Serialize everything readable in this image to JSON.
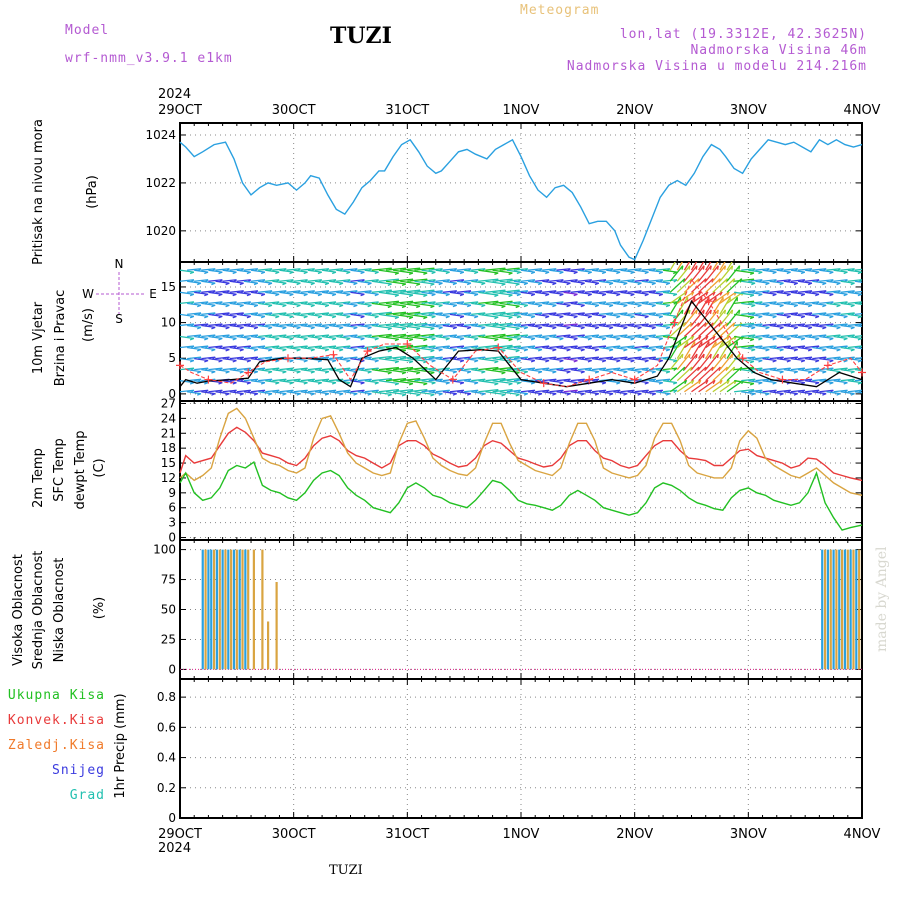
{
  "header": {
    "model_label": "Model",
    "model_name": "wrf-nmm_v3.9.1  e1km",
    "station": "TUZI",
    "title": "Meteogram",
    "lonlat": "lon,lat (19.3312E, 42.3625N)",
    "elevation": "Nadmorska Visina 46m",
    "model_elevation": "Nadmorska Visina u modelu 214.216m",
    "footer_station": "TUZI",
    "credit": "made by Angel"
  },
  "time_axis": {
    "year": "2024",
    "labels": [
      "29OCT",
      "30OCT",
      "31OCT",
      "1NOV",
      "2NOV",
      "3NOV",
      "4NOV"
    ]
  },
  "colors": {
    "pressure": "#2aa0e0",
    "temp2m": "#e83a3a",
    "sfc": "#d9a441",
    "dewpt": "#22c022",
    "high_cloud": "#2aa0e0",
    "mid_cloud": "#d9a441",
    "low_cloud": "#e0208a",
    "header_purple": "#b45ad2",
    "header_gold": "#e8c27a"
  },
  "chart_data": [
    {
      "type": "line",
      "panel": "pressure",
      "ylabel_lines": [
        "Pritisak na nivou mora",
        "(hPa)"
      ],
      "yticks": [
        1020,
        1022,
        1024
      ],
      "ylim": [
        1018.7,
        1024.5
      ],
      "series": [
        {
          "x": [
            0,
            0.1,
            0.25,
            0.4,
            0.6,
            0.8,
            0.95,
            1.1,
            1.25,
            1.4,
            1.55,
            1.7,
            1.9,
            2.05,
            2.2,
            2.3,
            2.45,
            2.6,
            2.75,
            2.9,
            3.05,
            3.2,
            3.35,
            3.5,
            3.6,
            3.75,
            3.9,
            4.05,
            4.2,
            4.35,
            4.5,
            4.6,
            4.75,
            4.9,
            5.05,
            5.2,
            5.4,
            5.55,
            5.7,
            5.85,
            6.0,
            6.15,
            6.3,
            6.45,
            6.6,
            6.75,
            6.9,
            7.05,
            7.2,
            7.35,
            7.5,
            7.65,
            7.75,
            7.9,
            8.0,
            8.15,
            8.3,
            8.45,
            8.6,
            8.75,
            8.9,
            9.05,
            9.2,
            9.35,
            9.5,
            9.6,
            9.75,
            9.9,
            10.05,
            10.2,
            10.35,
            10.5,
            10.65,
            10.8,
            10.95,
            11.1,
            11.25,
            11.4,
            11.55,
            11.7,
            11.85,
            12.0
          ],
          "values": [
            1023.7,
            1023.5,
            1023.1,
            1023.3,
            1023.6,
            1023.7,
            1023.0,
            1022.0,
            1021.5,
            1021.8,
            1022.0,
            1021.9,
            1022.0,
            1021.7,
            1022.0,
            1022.3,
            1022.2,
            1021.5,
            1020.9,
            1020.7,
            1021.2,
            1021.8,
            1022.1,
            1022.5,
            1022.5,
            1023.1,
            1023.6,
            1023.8,
            1023.3,
            1022.7,
            1022.4,
            1022.5,
            1022.9,
            1023.3,
            1023.4,
            1023.2,
            1023.0,
            1023.4,
            1023.6,
            1023.8,
            1023.1,
            1022.3,
            1021.7,
            1021.4,
            1021.8,
            1021.9,
            1021.6,
            1021.0,
            1020.3,
            1020.4,
            1020.4,
            1020.0,
            1019.4,
            1018.9,
            1018.8,
            1019.6,
            1020.5,
            1021.4,
            1021.9,
            1022.1,
            1021.9,
            1022.4,
            1023.1,
            1023.6,
            1023.4,
            1023.1,
            1022.6,
            1022.4,
            1023.0,
            1023.4,
            1023.8,
            1023.7,
            1023.6,
            1023.7,
            1023.5,
            1023.3,
            1023.8,
            1023.6,
            1023.8,
            1023.6,
            1023.5,
            1023.6
          ]
        }
      ]
    },
    {
      "type": "quiver",
      "panel": "wind",
      "ylabel_lines": [
        "10m Vjetar",
        "Brzina i Pravac",
        "(m/s)"
      ],
      "compass": {
        "n": "N",
        "s": "S",
        "w": "W",
        "e": "E"
      },
      "yticks": [
        0,
        5,
        10,
        15
      ],
      "ylim": [
        -1,
        18.5
      ],
      "speed": {
        "x": [
          0,
          0.1,
          0.3,
          0.5,
          0.9,
          1.2,
          1.4,
          1.8,
          2.2,
          2.6,
          2.8,
          3.0,
          3.2,
          3.5,
          3.8,
          4.1,
          4.5,
          4.9,
          5.3,
          5.6,
          6.0,
          6.4,
          6.8,
          7.2,
          7.6,
          8.0,
          8.4,
          8.6,
          8.8,
          9.0,
          9.2,
          9.5,
          9.8,
          10.1,
          10.4,
          10.8,
          11.2,
          11.6,
          12.0
        ],
        "values": [
          1,
          2,
          1.5,
          1.8,
          2,
          2.2,
          4.5,
          5,
          5,
          4.8,
          2,
          1,
          5,
          6,
          6.5,
          5,
          2,
          6,
          6.2,
          6,
          2,
          1.5,
          1,
          1.5,
          2,
          1.5,
          2.5,
          5,
          9,
          13,
          11,
          8,
          5,
          3,
          2,
          1.5,
          1,
          3,
          2
        ]
      },
      "gust": {
        "x": [
          0,
          0.2,
          0.5,
          0.9,
          1.2,
          1.5,
          1.9,
          2.3,
          2.7,
          3.0,
          3.3,
          3.6,
          4.0,
          4.4,
          4.8,
          5.2,
          5.6,
          6.0,
          6.4,
          6.8,
          7.2,
          7.6,
          8.0,
          8.4,
          8.7,
          9.0,
          9.3,
          9.6,
          9.9,
          10.2,
          10.6,
          11.0,
          11.4,
          11.8,
          12.0
        ],
        "values": [
          4,
          3,
          2,
          1.5,
          3,
          4.5,
          5,
          5,
          5.5,
          2,
          6,
          7,
          7,
          4,
          2,
          6,
          6.5,
          3,
          1.5,
          1,
          2,
          3,
          2,
          4,
          10,
          16,
          13,
          9,
          5,
          3,
          2,
          2,
          4,
          5,
          3
        ]
      }
    },
    {
      "type": "line",
      "panel": "temperature",
      "ylabel_lines": [
        "2m Temp",
        "SFC Temp",
        "dewpt Temp",
        "(C)"
      ],
      "yticks": [
        0,
        3,
        6,
        9,
        12,
        15,
        18,
        21,
        24,
        27
      ],
      "ylim": [
        -0.5,
        27.5
      ],
      "x": [
        0,
        0.1,
        0.25,
        0.4,
        0.55,
        0.7,
        0.85,
        1.0,
        1.15,
        1.3,
        1.45,
        1.6,
        1.75,
        1.9,
        2.05,
        2.2,
        2.35,
        2.5,
        2.65,
        2.8,
        2.95,
        3.1,
        3.25,
        3.4,
        3.55,
        3.7,
        3.85,
        4.0,
        4.15,
        4.3,
        4.45,
        4.6,
        4.75,
        4.9,
        5.05,
        5.2,
        5.35,
        5.5,
        5.65,
        5.8,
        5.95,
        6.1,
        6.25,
        6.4,
        6.55,
        6.7,
        6.85,
        7.0,
        7.15,
        7.3,
        7.45,
        7.6,
        7.75,
        7.9,
        8.05,
        8.2,
        8.35,
        8.5,
        8.65,
        8.8,
        8.95,
        9.1,
        9.25,
        9.4,
        9.55,
        9.7,
        9.85,
        10.0,
        10.15,
        10.3,
        10.45,
        10.6,
        10.75,
        10.9,
        11.05,
        11.2,
        11.35,
        11.5,
        11.65,
        11.8,
        12.0
      ],
      "series": [
        {
          "name": "2m Temp",
          "values": [
            13,
            16.5,
            15,
            15.5,
            16,
            18.5,
            21,
            22.2,
            21.2,
            19.5,
            17,
            16.5,
            16,
            15,
            14.5,
            16,
            18.5,
            20,
            20.5,
            19.5,
            17.5,
            16.5,
            16,
            15,
            14,
            15,
            18.5,
            19.5,
            19.5,
            18.5,
            16.8,
            16,
            15,
            14.2,
            14.5,
            16,
            18.5,
            19.5,
            19,
            17.5,
            16,
            15.5,
            14.8,
            14.2,
            14.5,
            16,
            18.5,
            19.5,
            19.5,
            17.5,
            16,
            15.5,
            14.5,
            14,
            14.5,
            16.5,
            18.5,
            19.5,
            19.5,
            17.5,
            16,
            15.8,
            15.5,
            14.5,
            14.5,
            16,
            17.5,
            17.8,
            16.5,
            16,
            15.5,
            15,
            14,
            14.5,
            16,
            15.8,
            14.5,
            13,
            12.5,
            12,
            11.5
          ]
        },
        {
          "name": "SFC Temp",
          "values": [
            12,
            13,
            11.5,
            12.5,
            14,
            20,
            25,
            26,
            24,
            20,
            16,
            15,
            14.5,
            13.5,
            13,
            14,
            20,
            24,
            24.5,
            21,
            17,
            15,
            14,
            13,
            12.5,
            13,
            19,
            23,
            23.5,
            20,
            16,
            14.5,
            13.5,
            12.8,
            12.5,
            14,
            19,
            23,
            23,
            19,
            15.5,
            14.5,
            13.5,
            13,
            12.5,
            14,
            19,
            23,
            23,
            19.5,
            14,
            13,
            12.5,
            12,
            12.5,
            14.5,
            20,
            23,
            23,
            19.5,
            14.5,
            13,
            12.5,
            12,
            12,
            14,
            19.5,
            21.5,
            20,
            16,
            14.5,
            13.5,
            12.5,
            12,
            13,
            14,
            12.5,
            11,
            10,
            9,
            8.5
          ]
        },
        {
          "name": "dewpt Temp",
          "values": [
            11,
            13,
            9,
            7.5,
            8,
            10,
            13.5,
            14.5,
            14,
            15.2,
            10.5,
            9.5,
            9,
            8,
            7.5,
            9,
            11.5,
            13,
            13.5,
            12.5,
            10,
            8.5,
            7.5,
            6,
            5.5,
            5,
            7,
            10,
            11,
            10,
            8.5,
            8,
            7,
            6.5,
            6,
            7.5,
            9.5,
            11.5,
            11,
            9.5,
            7.5,
            6.8,
            6.5,
            6,
            5.5,
            6.5,
            8.5,
            9.5,
            8.5,
            7.5,
            6,
            5.5,
            5,
            4.5,
            5,
            7,
            10,
            11,
            10.5,
            9.5,
            8,
            7,
            6.5,
            5.8,
            5.5,
            8,
            9.5,
            10,
            9,
            8.5,
            7.5,
            7,
            6.5,
            7,
            9,
            13,
            7,
            4,
            1.5,
            2,
            2.5
          ]
        }
      ]
    },
    {
      "type": "bar",
      "panel": "clouds",
      "ylabel_lines": [
        "Visoka Oblacnost",
        "Srednja Oblacnost",
        "Niska Oblacnost",
        "(%)"
      ],
      "yticks": [
        0,
        25,
        50,
        75,
        100
      ],
      "ylim": [
        -8,
        108
      ],
      "series": [
        {
          "name": "Visoka Oblacnost",
          "x": [
            0.4,
            0.5,
            0.55,
            0.65,
            0.75,
            0.85,
            0.95,
            1.05,
            1.15,
            11.3,
            11.4,
            11.5,
            11.6,
            11.7,
            11.8,
            11.9
          ],
          "values": [
            100,
            100,
            100,
            100,
            100,
            100,
            100,
            100,
            100,
            100,
            100,
            100,
            100,
            100,
            100,
            100
          ]
        },
        {
          "name": "Srednja Oblacnost",
          "x": [
            0.45,
            0.6,
            0.7,
            0.8,
            0.9,
            1.0,
            1.1,
            1.2,
            1.3,
            1.45,
            1.55,
            1.7,
            11.35,
            11.45,
            11.55,
            11.65,
            11.75,
            11.85,
            11.95
          ],
          "values": [
            100,
            100,
            100,
            100,
            100,
            100,
            100,
            100,
            100,
            100,
            40,
            73,
            100,
            100,
            100,
            100,
            100,
            100,
            100
          ]
        },
        {
          "name": "Niska Oblacnost",
          "x": [],
          "values": []
        }
      ]
    },
    {
      "type": "line",
      "panel": "precip",
      "ylabel_lines": [
        "1hr Precip (mm)"
      ],
      "legend": [
        "Ukupna Kisa",
        "Konvek.Kisa",
        "Zaledj.Kisa",
        "Snijeg",
        "Grad"
      ],
      "yticks": [
        0,
        0.2,
        0.4,
        0.6,
        0.8
      ],
      "ylim": [
        0,
        0.92
      ],
      "series": [
        {
          "name": "Ukupna Kisa",
          "values": []
        }
      ]
    }
  ]
}
